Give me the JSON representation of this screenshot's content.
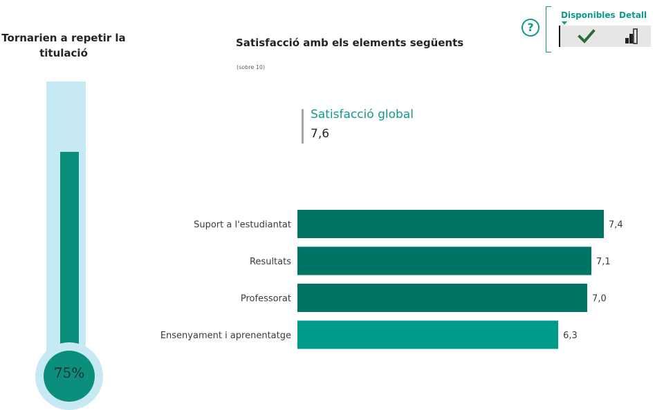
{
  "thermometer": {
    "title_line1": "Tornarien a repetir la",
    "title_line2": "titulació",
    "value_label": "75%",
    "value": 75,
    "fill_color": "#0b8f7c",
    "tube_color": "#c6e9f3"
  },
  "kpi": {
    "label": "Satisfacció global",
    "value": "7,6"
  },
  "toolbar": {
    "available_tab": "Disponibles",
    "detail_tab": "Detall",
    "help_symbol": "?",
    "check_icon": "check-icon",
    "bar_chart_icon": "bar-chart-icon"
  },
  "chart_data": {
    "type": "bar",
    "orientation": "horizontal",
    "title": "Satisfacció amb els elements següents",
    "subtitle": "(sobre 10)",
    "categories": [
      "Suport a l'estudiantat",
      "Resultats",
      "Professorat",
      "Ensenyament i aprenentatge"
    ],
    "values": [
      7.4,
      7.1,
      7.0,
      6.3
    ],
    "value_labels": [
      "7,4",
      "7,1",
      "7,0",
      "6,3"
    ],
    "colors": [
      "#007566",
      "#007566",
      "#007566",
      "#009a8a"
    ],
    "xlim": [
      0,
      7.4
    ],
    "grid": false,
    "legend": "none"
  }
}
